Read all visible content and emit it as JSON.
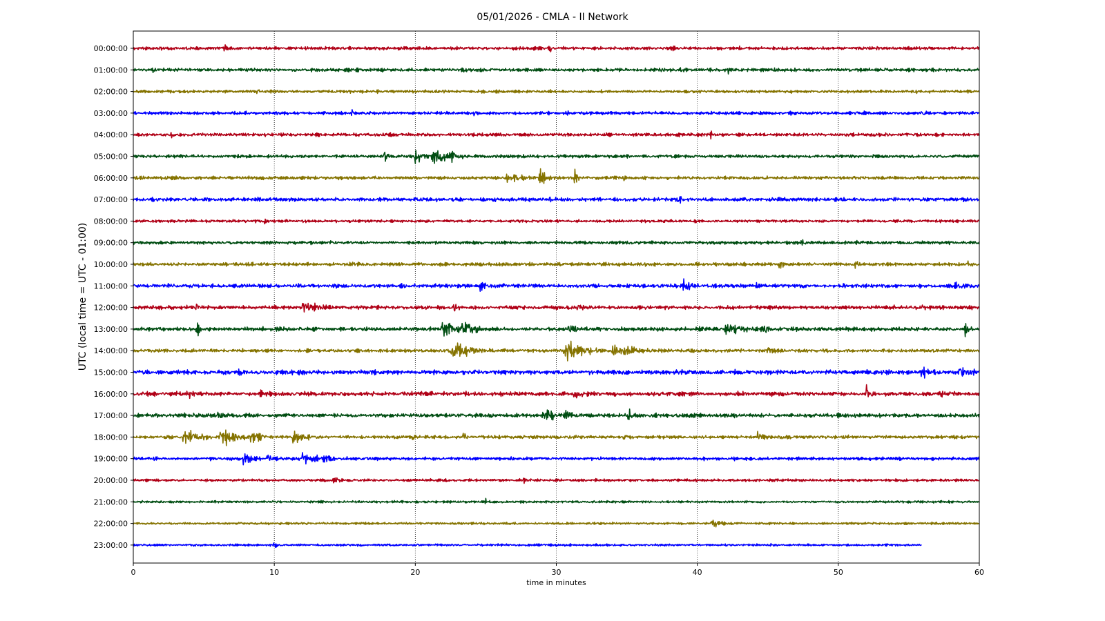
{
  "chart_data": {
    "type": "line",
    "title": "05/01/2026 - CMLA - II Network",
    "xlabel": "time in minutes",
    "ylabel": "UTC (local time = UTC - 01:00)",
    "xlim": [
      0,
      60
    ],
    "xticks": [
      "0",
      "10",
      "20",
      "30",
      "40",
      "50",
      "60"
    ],
    "grid": "vertical dotted at each x tick",
    "row_labels": [
      "00:00:00",
      "01:00:00",
      "02:00:00",
      "03:00:00",
      "04:00:00",
      "05:00:00",
      "06:00:00",
      "07:00:00",
      "08:00:00",
      "09:00:00",
      "10:00:00",
      "11:00:00",
      "12:00:00",
      "13:00:00",
      "14:00:00",
      "15:00:00",
      "16:00:00",
      "17:00:00",
      "18:00:00",
      "19:00:00",
      "20:00:00",
      "21:00:00",
      "22:00:00",
      "23:00:00"
    ],
    "colors": [
      "#b00016",
      "#004d12",
      "#857300",
      "#0000ff"
    ],
    "rows": [
      {
        "hour": 0,
        "noise": 0.28,
        "end": 60,
        "events": [
          [
            6.5,
            0.1,
            0.6,
            1.5
          ],
          [
            29.5,
            0.15,
            0.5,
            1.5
          ],
          [
            38.3,
            0.15,
            0.5,
            1.5
          ],
          [
            43,
            0.1,
            0.4,
            1.5
          ]
        ]
      },
      {
        "hour": 1,
        "noise": 0.3,
        "end": 60,
        "events": [
          [
            1.4,
            0.1,
            0.6,
            1.5
          ],
          [
            38.8,
            0.15,
            0.9,
            1.5
          ],
          [
            42.2,
            0.1,
            0.5,
            1.5
          ]
        ]
      },
      {
        "hour": 2,
        "noise": 0.26,
        "end": 60,
        "events": [
          [
            8.8,
            0.1,
            0.5,
            1.5
          ],
          [
            22,
            0.15,
            0.4,
            1.5
          ]
        ]
      },
      {
        "hour": 3,
        "noise": 0.28,
        "end": 60,
        "events": [
          [
            15.5,
            0.1,
            0.6,
            1.5
          ],
          [
            24.2,
            0.1,
            0.5,
            1.5
          ],
          [
            30.8,
            0.1,
            0.5,
            1.5
          ],
          [
            56.1,
            0.1,
            0.6,
            1.5
          ]
        ]
      },
      {
        "hour": 4,
        "noise": 0.28,
        "end": 60,
        "events": [
          [
            2.7,
            0.1,
            0.7,
            1.5
          ],
          [
            20.5,
            0.15,
            0.5,
            1.5
          ],
          [
            40.9,
            0.15,
            0.5,
            1.5
          ]
        ]
      },
      {
        "hour": 5,
        "noise": 0.28,
        "end": 60,
        "events": [
          [
            17.8,
            0.15,
            1.6,
            1.2
          ],
          [
            20.0,
            0.3,
            1.8,
            1.1
          ],
          [
            21.2,
            1.0,
            1.4,
            1.8
          ],
          [
            22.5,
            0.5,
            0.7,
            1.3
          ]
        ]
      },
      {
        "hour": 6,
        "noise": 0.28,
        "end": 60,
        "events": [
          [
            26.5,
            1.2,
            0.6,
            1.6
          ],
          [
            28.8,
            0.5,
            1.6,
            1.3
          ],
          [
            31.3,
            0.15,
            1.6,
            1.0
          ],
          [
            34.8,
            0.1,
            0.5,
            1.5
          ]
        ]
      },
      {
        "hour": 7,
        "noise": 0.34,
        "end": 60,
        "events": [
          [
            38.6,
            0.2,
            0.7,
            1.5
          ],
          [
            29.5,
            0.15,
            0.5,
            1.5
          ]
        ]
      },
      {
        "hour": 8,
        "noise": 0.24,
        "end": 60,
        "events": [
          [
            9.3,
            0.1,
            0.5,
            1.5
          ],
          [
            27.5,
            0.1,
            0.4,
            1.5
          ]
        ]
      },
      {
        "hour": 9,
        "noise": 0.28,
        "end": 60,
        "events": [
          [
            47.4,
            0.15,
            0.6,
            1.5
          ],
          [
            11,
            0.1,
            0.4,
            1.5
          ]
        ]
      },
      {
        "hour": 10,
        "noise": 0.3,
        "end": 60,
        "events": [
          [
            45.8,
            0.3,
            0.5,
            1.5
          ],
          [
            51.2,
            0.3,
            0.4,
            1.5
          ],
          [
            59.2,
            0.2,
            0.4,
            1.5
          ]
        ]
      },
      {
        "hour": 11,
        "noise": 0.34,
        "end": 60,
        "events": [
          [
            2.4,
            0.1,
            0.5,
            1.5
          ],
          [
            24.6,
            0.4,
            0.9,
            1.3
          ],
          [
            39.0,
            0.5,
            1.2,
            1.3
          ],
          [
            44.2,
            0.2,
            0.5,
            1.5
          ],
          [
            47.3,
            0.2,
            0.6,
            1.5
          ],
          [
            58,
            1.2,
            0.3,
            1.5
          ]
        ]
      },
      {
        "hour": 12,
        "noise": 0.34,
        "end": 60,
        "events": [
          [
            4.5,
            0.1,
            1.8,
            1.0
          ],
          [
            12.0,
            0.8,
            0.9,
            1.4
          ],
          [
            22.7,
            0.4,
            0.6,
            1.5
          ],
          [
            31.5,
            0.5,
            0.5,
            1.5
          ],
          [
            55.9,
            0.15,
            0.6,
            1.5
          ]
        ]
      },
      {
        "hour": 13,
        "noise": 0.34,
        "end": 60,
        "events": [
          [
            4.5,
            0.15,
            2.0,
            1.5
          ],
          [
            21.9,
            0.8,
            1.6,
            1.4
          ],
          [
            23.3,
            1.0,
            0.9,
            1.6
          ],
          [
            30.9,
            0.3,
            1.4,
            1.2
          ],
          [
            42,
            1.4,
            0.7,
            1.5
          ],
          [
            44.8,
            0.3,
            0.8,
            1.3
          ],
          [
            59.0,
            0.3,
            0.8,
            1.5
          ]
        ]
      },
      {
        "hour": 14,
        "noise": 0.3,
        "end": 60,
        "events": [
          [
            22.5,
            1.4,
            1.4,
            1.4
          ],
          [
            30.5,
            1.5,
            1.7,
            1.4
          ],
          [
            34.0,
            1.3,
            1.0,
            1.5
          ],
          [
            45,
            0.5,
            0.5,
            1.5
          ]
        ]
      },
      {
        "hour": 15,
        "noise": 0.4,
        "end": 60,
        "events": [
          [
            7.5,
            0.15,
            0.8,
            1.5
          ],
          [
            55.9,
            0.3,
            1.3,
            1.3
          ],
          [
            58.5,
            0.8,
            0.6,
            1.5
          ]
        ]
      },
      {
        "hour": 16,
        "noise": 0.38,
        "end": 60,
        "events": [
          [
            3.8,
            0.4,
            0.7,
            1.5
          ],
          [
            9.0,
            0.3,
            0.6,
            1.5
          ],
          [
            31.3,
            0.5,
            1.5,
            1.2
          ],
          [
            52.0,
            0.15,
            1.5,
            1.0
          ],
          [
            57.3,
            0.1,
            0.7,
            1.5
          ]
        ]
      },
      {
        "hour": 17,
        "noise": 0.34,
        "end": 60,
        "events": [
          [
            6.0,
            0.2,
            0.9,
            1.4
          ],
          [
            29.0,
            0.7,
            1.1,
            1.4
          ],
          [
            30.6,
            0.5,
            0.9,
            1.4
          ],
          [
            35.1,
            0.2,
            1.3,
            1.2
          ],
          [
            39.5,
            0.3,
            0.5,
            1.5
          ]
        ]
      },
      {
        "hour": 18,
        "noise": 0.3,
        "end": 60,
        "events": [
          [
            3.5,
            1.3,
            0.9,
            1.5
          ],
          [
            6.2,
            0.9,
            1.7,
            1.3
          ],
          [
            8.3,
            0.7,
            1.3,
            1.4
          ],
          [
            11.3,
            0.6,
            1.2,
            1.4
          ],
          [
            19.8,
            0.15,
            0.8,
            1.4
          ],
          [
            23.4,
            0.1,
            1.8,
            1.0
          ],
          [
            34.8,
            0.15,
            0.7,
            1.5
          ],
          [
            44.3,
            0.3,
            1.2,
            1.3
          ]
        ]
      },
      {
        "hour": 19,
        "noise": 0.28,
        "end": 60,
        "events": [
          [
            7.8,
            0.5,
            1.1,
            1.4
          ],
          [
            9.5,
            0.2,
            1.2,
            1.2
          ],
          [
            12.0,
            0.8,
            1.2,
            1.4
          ],
          [
            13.5,
            0.6,
            0.6,
            1.5
          ],
          [
            16.5,
            0.4,
            0.4,
            1.5
          ]
        ]
      },
      {
        "hour": 20,
        "noise": 0.24,
        "end": 60,
        "events": [
          [
            14.2,
            0.3,
            0.7,
            1.4
          ],
          [
            27.7,
            0.15,
            0.4,
            1.5
          ]
        ]
      },
      {
        "hour": 21,
        "noise": 0.2,
        "end": 60,
        "events": [
          [
            25,
            0.2,
            0.3,
            1.5
          ]
        ]
      },
      {
        "hour": 22,
        "noise": 0.2,
        "end": 60,
        "events": [
          [
            41.0,
            0.6,
            0.7,
            1.4
          ]
        ]
      },
      {
        "hour": 23,
        "noise": 0.2,
        "end": 55.9,
        "events": [
          [
            10,
            0.2,
            0.3,
            1.5
          ]
        ]
      }
    ]
  }
}
